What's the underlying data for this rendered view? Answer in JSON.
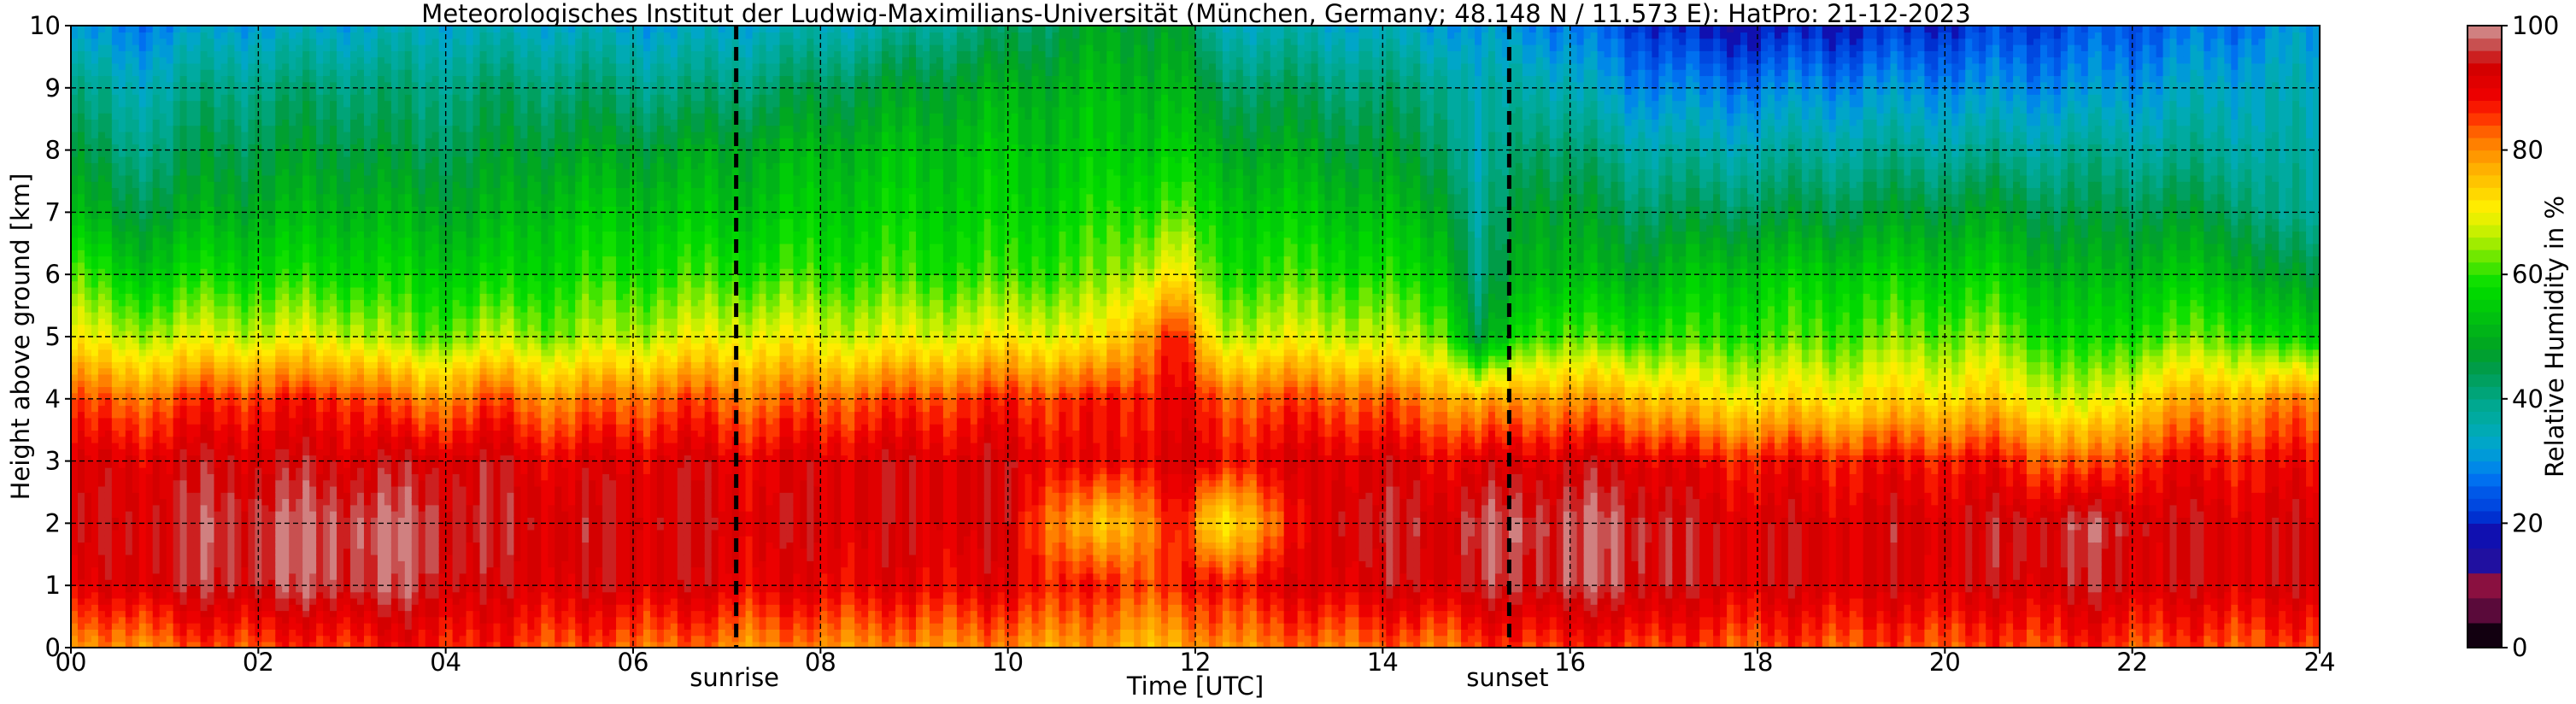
{
  "chart_data": {
    "type": "heatmap",
    "title": "Meteorologisches Institut der Ludwig-Maximilians-Universität (München, Germany; 48.148 N / 11.573 E):    HatPro: 21-12-2023",
    "xlabel": "Time [UTC]",
    "ylabel": "Height above ground [km]",
    "xlim": [
      0,
      24
    ],
    "ylim": [
      0,
      10
    ],
    "x_ticks": [
      "00",
      "02",
      "04",
      "06",
      "08",
      "10",
      "12",
      "14",
      "16",
      "18",
      "20",
      "22",
      "24"
    ],
    "y_ticks": [
      "0",
      "1",
      "2",
      "3",
      "4",
      "5",
      "6",
      "7",
      "8",
      "9",
      "10"
    ],
    "grid": true,
    "annotations": [
      {
        "label": "sunrise",
        "x": 7.1
      },
      {
        "label": "sunset",
        "x": 15.35
      }
    ],
    "colorbar": {
      "label": "Relative Humidity in %",
      "range": [
        0,
        100
      ],
      "ticks": [
        "0",
        "20",
        "40",
        "60",
        "80",
        "100"
      ],
      "bands": [
        {
          "from": 0,
          "to": 4,
          "color": "#120010"
        },
        {
          "from": 4,
          "to": 8,
          "color": "#5a0a3a"
        },
        {
          "from": 8,
          "to": 12,
          "color": "#8a1040"
        },
        {
          "from": 12,
          "to": 16,
          "color": "#2010a0"
        },
        {
          "from": 16,
          "to": 20,
          "color": "#1010b0"
        },
        {
          "from": 20,
          "to": 22,
          "color": "#0030d0"
        },
        {
          "from": 22,
          "to": 24,
          "color": "#0048e0"
        },
        {
          "from": 24,
          "to": 26,
          "color": "#0058e8"
        },
        {
          "from": 26,
          "to": 28,
          "color": "#0070f0"
        },
        {
          "from": 28,
          "to": 30,
          "color": "#0088e8"
        },
        {
          "from": 30,
          "to": 32,
          "color": "#009ad8"
        },
        {
          "from": 32,
          "to": 34,
          "color": "#00a6c8"
        },
        {
          "from": 34,
          "to": 36,
          "color": "#00aab4"
        },
        {
          "from": 36,
          "to": 38,
          "color": "#00aaa0"
        },
        {
          "from": 38,
          "to": 40,
          "color": "#00a890"
        },
        {
          "from": 40,
          "to": 42,
          "color": "#00a478"
        },
        {
          "from": 42,
          "to": 44,
          "color": "#00a060"
        },
        {
          "from": 44,
          "to": 46,
          "color": "#009c48"
        },
        {
          "from": 46,
          "to": 48,
          "color": "#00a030"
        },
        {
          "from": 48,
          "to": 50,
          "color": "#00a820"
        },
        {
          "from": 50,
          "to": 52,
          "color": "#00b418"
        },
        {
          "from": 52,
          "to": 54,
          "color": "#00c010"
        },
        {
          "from": 54,
          "to": 56,
          "color": "#00cc08"
        },
        {
          "from": 56,
          "to": 58,
          "color": "#00d800"
        },
        {
          "from": 58,
          "to": 60,
          "color": "#10e000"
        },
        {
          "from": 60,
          "to": 62,
          "color": "#40e400"
        },
        {
          "from": 62,
          "to": 64,
          "color": "#70e800"
        },
        {
          "from": 64,
          "to": 66,
          "color": "#a0ec00"
        },
        {
          "from": 66,
          "to": 68,
          "color": "#c8f000"
        },
        {
          "from": 68,
          "to": 70,
          "color": "#e8f000"
        },
        {
          "from": 70,
          "to": 72,
          "color": "#ffec00"
        },
        {
          "from": 72,
          "to": 74,
          "color": "#ffd800"
        },
        {
          "from": 74,
          "to": 76,
          "color": "#ffc400"
        },
        {
          "from": 76,
          "to": 78,
          "color": "#ffb000"
        },
        {
          "from": 78,
          "to": 80,
          "color": "#ff9800"
        },
        {
          "from": 80,
          "to": 82,
          "color": "#ff8000"
        },
        {
          "from": 82,
          "to": 84,
          "color": "#ff6000"
        },
        {
          "from": 84,
          "to": 86,
          "color": "#ff3800"
        },
        {
          "from": 86,
          "to": 88,
          "color": "#f81800"
        },
        {
          "from": 88,
          "to": 90,
          "color": "#ec0000"
        },
        {
          "from": 90,
          "to": 92,
          "color": "#e00000"
        },
        {
          "from": 92,
          "to": 94,
          "color": "#d40000"
        },
        {
          "from": 94,
          "to": 96,
          "color": "#cc2020"
        },
        {
          "from": 96,
          "to": 98,
          "color": "#c85050"
        },
        {
          "from": 98,
          "to": 100,
          "color": "#d08080"
        }
      ]
    },
    "field": {
      "description_units": "relative humidity % by time (h UTC) and height (km); key profiles at approximate times",
      "profiles": [
        {
          "t": 0.0,
          "rh": [
            78,
            88,
            92,
            90,
            84,
            70,
            62,
            52,
            46,
            40,
            30
          ]
        },
        {
          "t": 0.6,
          "rh": [
            80,
            92,
            93,
            91,
            82,
            66,
            55,
            46,
            40,
            35,
            28
          ]
        },
        {
          "t": 1.5,
          "rh": [
            84,
            95,
            96,
            93,
            86,
            68,
            58,
            50,
            45,
            40,
            32
          ]
        },
        {
          "t": 3.0,
          "rh": [
            86,
            97,
            98,
            93,
            87,
            68,
            58,
            52,
            47,
            42,
            33
          ]
        },
        {
          "t": 3.7,
          "rh": [
            88,
            96,
            97,
            93,
            80,
            62,
            56,
            50,
            44,
            40,
            34
          ]
        },
        {
          "t": 4.5,
          "rh": [
            86,
            92,
            94,
            93,
            84,
            66,
            56,
            50,
            46,
            42,
            34
          ]
        },
        {
          "t": 5.2,
          "rh": [
            84,
            92,
            93,
            90,
            80,
            64,
            58,
            54,
            48,
            42,
            34
          ]
        },
        {
          "t": 6.5,
          "rh": [
            82,
            92,
            93,
            92,
            84,
            68,
            60,
            54,
            48,
            40,
            32
          ]
        },
        {
          "t": 7.3,
          "rh": [
            80,
            90,
            92,
            90,
            82,
            70,
            60,
            54,
            50,
            42,
            34
          ]
        },
        {
          "t": 8.5,
          "rh": [
            80,
            90,
            92,
            92,
            84,
            68,
            60,
            56,
            52,
            46,
            36
          ]
        },
        {
          "t": 10.0,
          "rh": [
            80,
            90,
            92,
            92,
            86,
            70,
            60,
            56,
            54,
            50,
            42
          ]
        },
        {
          "t": 11.0,
          "rh": [
            78,
            86,
            72,
            88,
            86,
            70,
            62,
            58,
            54,
            52,
            48
          ]
        },
        {
          "t": 11.8,
          "rh": [
            76,
            86,
            88,
            92,
            90,
            88,
            72,
            62,
            56,
            52,
            48
          ]
        },
        {
          "t": 12.2,
          "rh": [
            80,
            88,
            70,
            88,
            84,
            68,
            60,
            56,
            50,
            44,
            36
          ]
        },
        {
          "t": 13.5,
          "rh": [
            82,
            92,
            94,
            92,
            84,
            68,
            60,
            54,
            48,
            42,
            34
          ]
        },
        {
          "t": 14.7,
          "rh": [
            82,
            93,
            94,
            90,
            80,
            64,
            56,
            50,
            44,
            40,
            32
          ]
        },
        {
          "t": 15.0,
          "rh": [
            84,
            94,
            96,
            90,
            76,
            44,
            38,
            36,
            34,
            34,
            30
          ]
        },
        {
          "t": 15.6,
          "rh": [
            86,
            96,
            97,
            92,
            80,
            62,
            54,
            50,
            44,
            38,
            30
          ]
        },
        {
          "t": 16.6,
          "rh": [
            86,
            96,
            97,
            92,
            78,
            60,
            50,
            44,
            38,
            30,
            24
          ]
        },
        {
          "t": 17.5,
          "rh": [
            84,
            92,
            92,
            88,
            72,
            60,
            54,
            44,
            36,
            28,
            18
          ]
        },
        {
          "t": 19.0,
          "rh": [
            84,
            92,
            92,
            88,
            72,
            62,
            56,
            46,
            38,
            30,
            20
          ]
        },
        {
          "t": 20.5,
          "rh": [
            84,
            92,
            93,
            88,
            74,
            64,
            56,
            48,
            38,
            30,
            22
          ]
        },
        {
          "t": 21.5,
          "rh": [
            86,
            94,
            96,
            82,
            66,
            56,
            50,
            44,
            38,
            30,
            24
          ]
        },
        {
          "t": 22.3,
          "rh": [
            84,
            92,
            93,
            88,
            76,
            62,
            54,
            46,
            38,
            32,
            26
          ]
        },
        {
          "t": 23.2,
          "rh": [
            84,
            92,
            92,
            88,
            78,
            62,
            52,
            44,
            38,
            34,
            28
          ]
        },
        {
          "t": 23.6,
          "rh": [
            84,
            92,
            92,
            88,
            80,
            56,
            46,
            38,
            36,
            34,
            30
          ]
        },
        {
          "t": 24.0,
          "rh": [
            84,
            92,
            92,
            88,
            80,
            56,
            46,
            38,
            36,
            34,
            30
          ]
        }
      ]
    }
  }
}
